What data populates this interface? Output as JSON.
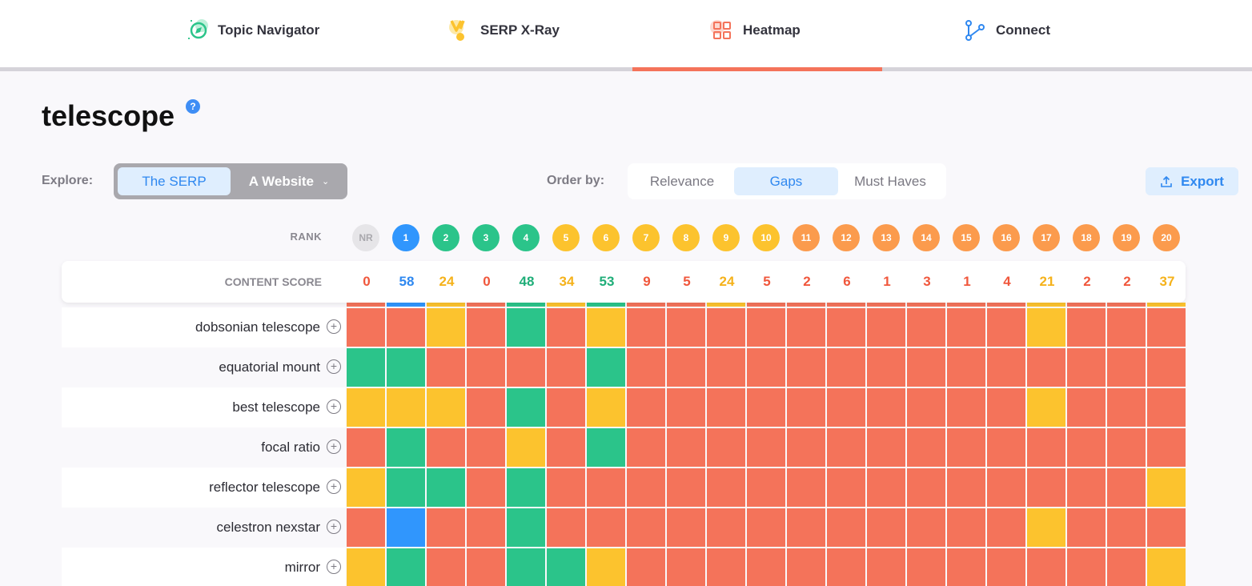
{
  "nav": {
    "tabs": [
      {
        "label": "Topic Navigator",
        "icon": "compass-icon",
        "active": false
      },
      {
        "label": "SERP X-Ray",
        "icon": "xray-medal-icon",
        "active": false
      },
      {
        "label": "Heatmap",
        "icon": "grid-icon",
        "active": true
      },
      {
        "label": "Connect",
        "icon": "network-icon",
        "active": false
      }
    ]
  },
  "page": {
    "title": "telescope",
    "help_glyph": "?"
  },
  "explore": {
    "label": "Explore:",
    "serp": "The SERP",
    "website": "A Website"
  },
  "order": {
    "label": "Order by:",
    "options": [
      "Relevance",
      "Gaps",
      "Must Haves"
    ],
    "selected": "Gaps"
  },
  "export_label": "Export",
  "colors": {
    "red": "#f4735a",
    "yellow": "#fcc32e",
    "green": "#2bc48a",
    "blue": "#3096fd",
    "orange": "#fb9b4d",
    "gray": "#e6e5e8",
    "accent": "#2f88f0"
  },
  "rank": {
    "label": "RANK",
    "badges": [
      {
        "text": "NR",
        "color": "gray"
      },
      {
        "text": "1",
        "color": "blue"
      },
      {
        "text": "2",
        "color": "green"
      },
      {
        "text": "3",
        "color": "green"
      },
      {
        "text": "4",
        "color": "green"
      },
      {
        "text": "5",
        "color": "yellow"
      },
      {
        "text": "6",
        "color": "yellow"
      },
      {
        "text": "7",
        "color": "yellow"
      },
      {
        "text": "8",
        "color": "yellow"
      },
      {
        "text": "9",
        "color": "yellow"
      },
      {
        "text": "10",
        "color": "yellow"
      },
      {
        "text": "11",
        "color": "orange"
      },
      {
        "text": "12",
        "color": "orange"
      },
      {
        "text": "13",
        "color": "orange"
      },
      {
        "text": "14",
        "color": "orange"
      },
      {
        "text": "15",
        "color": "orange"
      },
      {
        "text": "16",
        "color": "orange"
      },
      {
        "text": "17",
        "color": "orange"
      },
      {
        "text": "18",
        "color": "orange"
      },
      {
        "text": "19",
        "color": "orange"
      },
      {
        "text": "20",
        "color": "orange"
      }
    ]
  },
  "content_score": {
    "label": "CONTENT SCORE",
    "values": [
      0,
      58,
      24,
      0,
      48,
      34,
      53,
      9,
      5,
      24,
      5,
      2,
      6,
      1,
      3,
      1,
      4,
      21,
      2,
      2,
      37
    ],
    "colors": [
      "red",
      "blue",
      "yellow",
      "red",
      "green",
      "yellow",
      "green",
      "red",
      "red",
      "yellow",
      "red",
      "red",
      "red",
      "red",
      "red",
      "red",
      "red",
      "yellow",
      "red",
      "red",
      "yellow"
    ]
  },
  "heatmap": {
    "rows": [
      {
        "term": "dobsonian telescope",
        "cells": [
          "red",
          "red",
          "yellow",
          "red",
          "green",
          "red",
          "yellow",
          "red",
          "red",
          "red",
          "red",
          "red",
          "red",
          "red",
          "red",
          "red",
          "red",
          "yellow",
          "red",
          "red",
          "red"
        ]
      },
      {
        "term": "equatorial mount",
        "cells": [
          "green",
          "green",
          "red",
          "red",
          "red",
          "red",
          "green",
          "red",
          "red",
          "red",
          "red",
          "red",
          "red",
          "red",
          "red",
          "red",
          "red",
          "red",
          "red",
          "red",
          "red"
        ]
      },
      {
        "term": "best telescope",
        "cells": [
          "yellow",
          "yellow",
          "yellow",
          "red",
          "green",
          "red",
          "yellow",
          "red",
          "red",
          "red",
          "red",
          "red",
          "red",
          "red",
          "red",
          "red",
          "red",
          "yellow",
          "red",
          "red",
          "red"
        ]
      },
      {
        "term": "focal ratio",
        "cells": [
          "red",
          "green",
          "red",
          "red",
          "yellow",
          "red",
          "green",
          "red",
          "red",
          "red",
          "red",
          "red",
          "red",
          "red",
          "red",
          "red",
          "red",
          "red",
          "red",
          "red",
          "red"
        ]
      },
      {
        "term": "reflector telescope",
        "cells": [
          "yellow",
          "green",
          "green",
          "red",
          "green",
          "red",
          "red",
          "red",
          "red",
          "red",
          "red",
          "red",
          "red",
          "red",
          "red",
          "red",
          "red",
          "red",
          "red",
          "red",
          "yellow"
        ]
      },
      {
        "term": "celestron nexstar",
        "cells": [
          "red",
          "blue",
          "red",
          "red",
          "green",
          "red",
          "red",
          "red",
          "red",
          "red",
          "red",
          "red",
          "red",
          "red",
          "red",
          "red",
          "red",
          "yellow",
          "red",
          "red",
          "red"
        ]
      },
      {
        "term": "mirror",
        "cells": [
          "yellow",
          "green",
          "red",
          "red",
          "green",
          "green",
          "yellow",
          "red",
          "red",
          "red",
          "red",
          "red",
          "red",
          "red",
          "red",
          "red",
          "red",
          "red",
          "red",
          "red",
          "yellow"
        ]
      }
    ]
  }
}
